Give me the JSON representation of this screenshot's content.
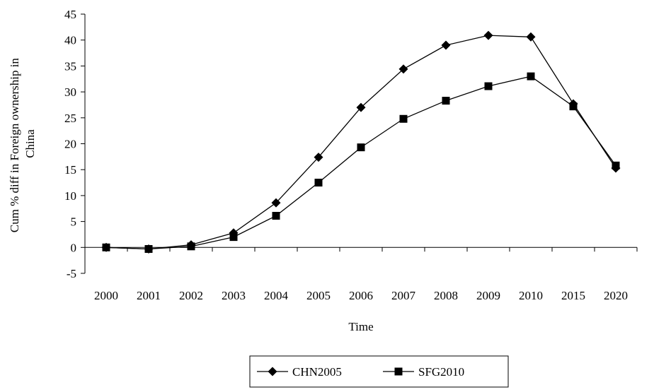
{
  "chart_data": {
    "type": "line",
    "categories": [
      "2000",
      "2001",
      "2002",
      "2003",
      "2004",
      "2005",
      "2006",
      "2007",
      "2008",
      "2009",
      "2010",
      "2015",
      "2020"
    ],
    "series": [
      {
        "name": "CHN2005",
        "marker": "diamond",
        "color": "#000000",
        "values": [
          0,
          -0.3,
          0.5,
          2.8,
          8.6,
          17.4,
          27.0,
          34.4,
          39.0,
          40.9,
          40.6,
          27.7,
          15.3
        ]
      },
      {
        "name": "SFG2010",
        "marker": "square",
        "color": "#000000",
        "values": [
          0,
          -0.3,
          0.2,
          2.0,
          6.1,
          12.5,
          19.3,
          24.8,
          28.3,
          31.1,
          33.0,
          27.2,
          15.8
        ]
      }
    ],
    "xlabel": "Time",
    "ylabel_lines": [
      "Cum % diff in Foreign ownership in",
      "China"
    ],
    "ylim": [
      -5,
      45
    ],
    "yticks": [
      "-5",
      "0",
      "5",
      "10",
      "15",
      "20",
      "25",
      "30",
      "35",
      "40",
      "45"
    ],
    "grid": false,
    "legend_position": "bottom-center"
  }
}
